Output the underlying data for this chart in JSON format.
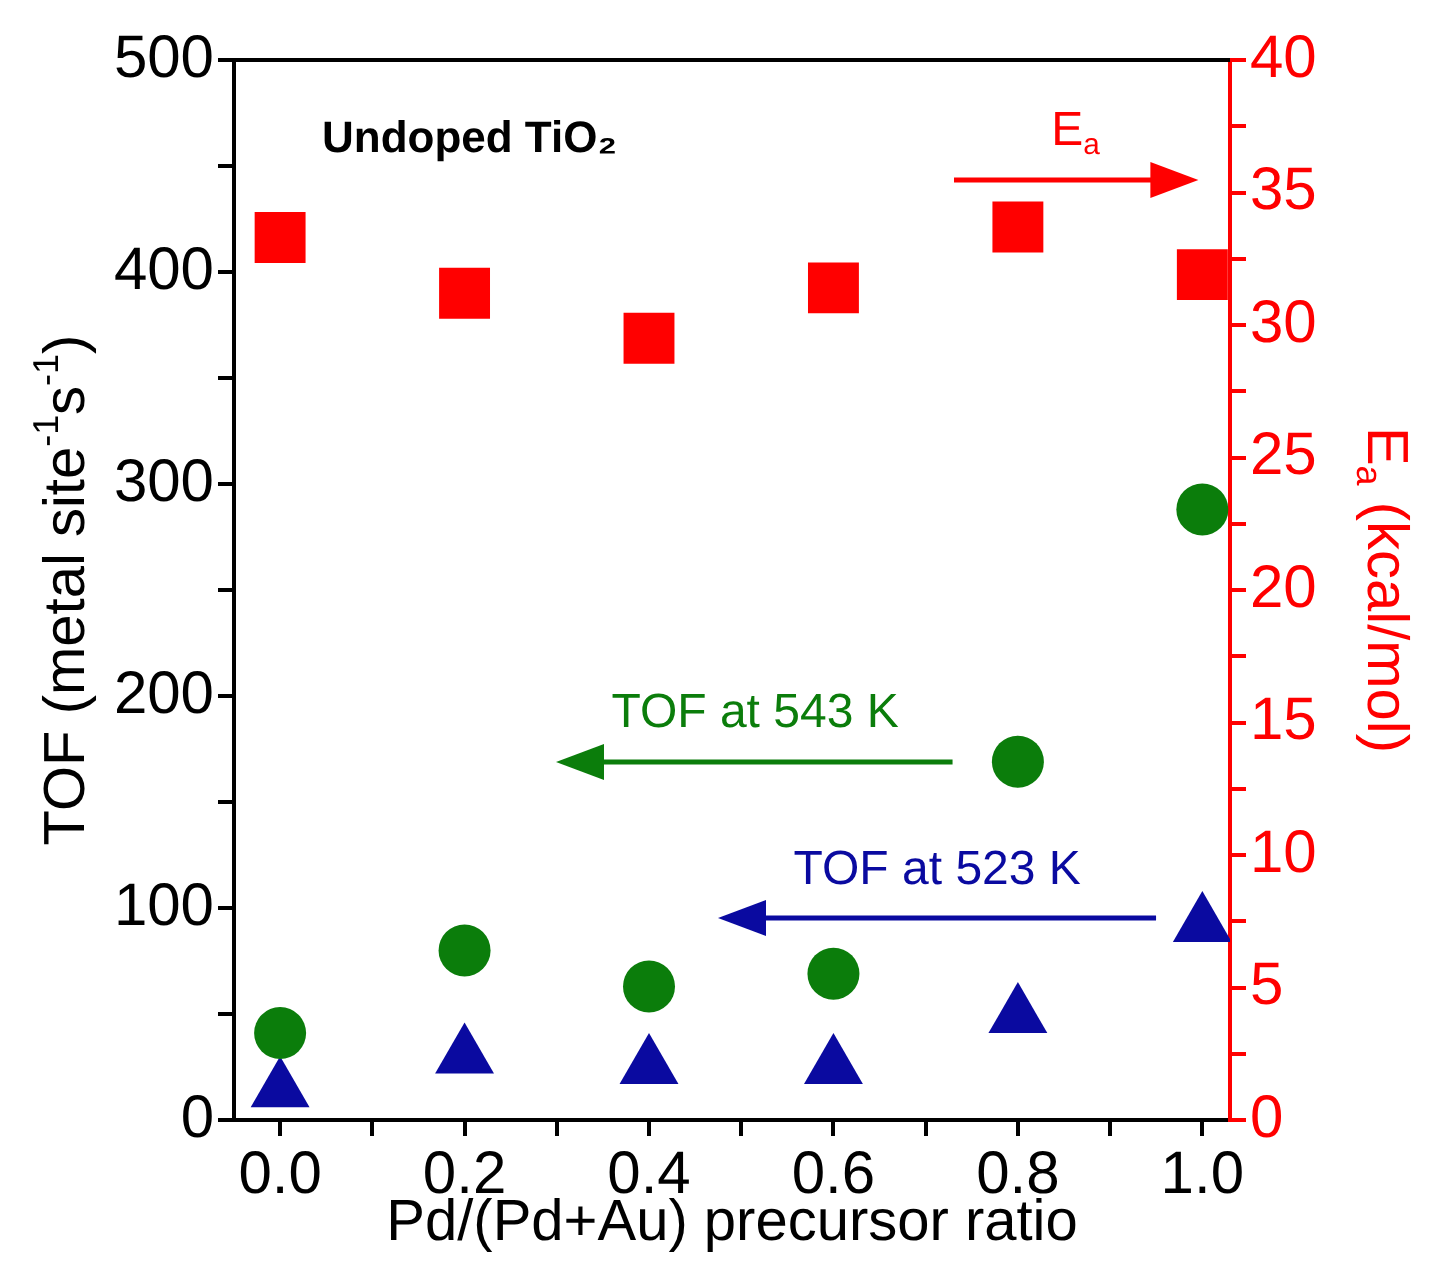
{
  "chart_data": {
    "type": "scatter",
    "title": "Undoped TiO₂",
    "xlabel": "Pd/(Pd+Au) precursor ratio",
    "ylabel": "TOF (metal site$^{-1}$s$^{-1}$)",
    "y2label": "E$_{a}$ (kcal/mol)",
    "x": [
      0,
      0.2,
      0.4,
      0.6,
      0.8,
      1
    ],
    "series": [
      {
        "name": "E$_{a}$",
        "color": "#ff0000",
        "marker": "square",
        "axis": "y2",
        "values": [
          33.3,
          31.2,
          29.5,
          31.4,
          33.7,
          31.9
        ]
      },
      {
        "name": "TOF at 543 K",
        "color": "#0b7d0b",
        "marker": "circle",
        "values": [
          41,
          80,
          63,
          69,
          169,
          288
        ]
      },
      {
        "name": "TOF at 523 K",
        "color": "#0a0aa0",
        "marker": "triangle",
        "values": [
          14,
          30,
          25,
          25,
          49,
          92
        ]
      }
    ],
    "xlim": [
      -0.05,
      1.03
    ],
    "xticks": [
      {
        "value": 0,
        "label": "0.0"
      },
      {
        "value": 0.1,
        "label": null
      },
      0.2,
      {
        "value": 0.3,
        "label": null
      },
      0.4,
      {
        "value": 0.5,
        "label": null
      },
      0.6,
      {
        "value": 0.7,
        "label": null
      },
      0.8,
      {
        "value": 0.9,
        "label": null
      },
      {
        "value": 1,
        "label": "1.0"
      }
    ],
    "ylim": [
      0,
      500
    ],
    "yticks": [
      0,
      {
        "value": 50,
        "label": null
      },
      100,
      {
        "value": 150,
        "label": null
      },
      200,
      {
        "value": 250,
        "label": null
      },
      300,
      {
        "value": 350,
        "label": null
      },
      400,
      {
        "value": 450,
        "label": null
      },
      500
    ],
    "y2lim": [
      0,
      40
    ],
    "y2ticks": [
      0,
      {
        "value": 2.5,
        "label": null
      },
      5,
      {
        "value": 7.5,
        "label": null
      },
      10,
      {
        "value": 12.5,
        "label": null
      },
      15,
      {
        "value": 17.5,
        "label": null
      },
      20,
      {
        "value": 22.5,
        "label": null
      },
      25,
      {
        "value": 27.5,
        "label": null
      },
      30,
      {
        "value": 32.5,
        "label": null
      },
      35,
      {
        "value": 37.5,
        "label": null
      },
      40
    ],
    "grid": false,
    "legend": false
  }
}
